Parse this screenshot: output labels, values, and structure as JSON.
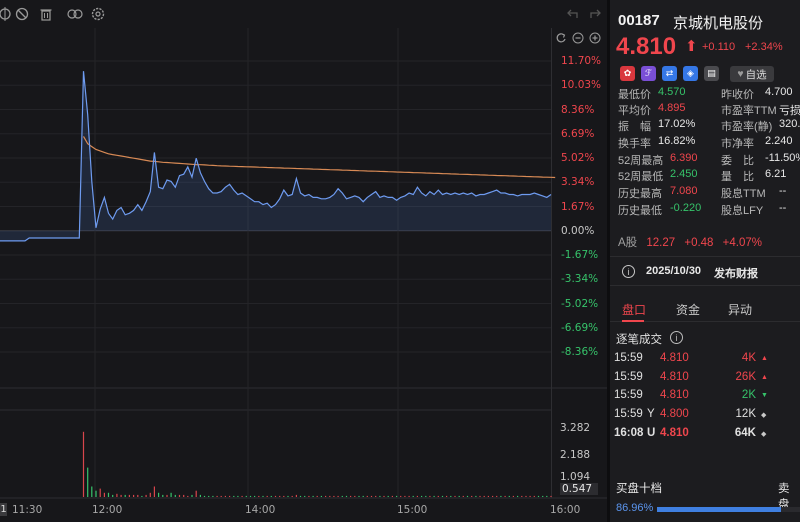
{
  "toolbar": {
    "icons": [
      "crosshair-icon",
      "no-entry-icon",
      "trash-icon",
      "link-icon",
      "settings-icon",
      "undo-icon",
      "redo-icon"
    ]
  },
  "chart": {
    "pct_labels": [
      {
        "text": "11.70%",
        "color": "#f0464d"
      },
      {
        "text": "10.03%",
        "color": "#f0464d"
      },
      {
        "text": "8.36%",
        "color": "#f0464d"
      },
      {
        "text": "6.69%",
        "color": "#f0464d"
      },
      {
        "text": "5.02%",
        "color": "#f0464d"
      },
      {
        "text": "3.34%",
        "color": "#f0464d"
      },
      {
        "text": "1.67%",
        "color": "#f0464d"
      },
      {
        "text": "0.00%",
        "color": "#c8c8c8"
      },
      {
        "text": "-1.67%",
        "color": "#36c36a"
      },
      {
        "text": "-3.34%",
        "color": "#36c36a"
      },
      {
        "text": "-5.02%",
        "color": "#36c36a"
      },
      {
        "text": "-6.69%",
        "color": "#36c36a"
      },
      {
        "text": "-8.36%",
        "color": "#36c36a"
      }
    ],
    "vol_labels": [
      "3.282",
      "2.188",
      "1.094",
      "0.547"
    ],
    "time_labels": [
      "11:30",
      "12:00",
      "14:00",
      "15:00",
      "16:00"
    ],
    "left_marker": "1"
  },
  "chart_data": {
    "type": "line",
    "title": "",
    "ylabel": "",
    "ylim_pct": [
      -8.36,
      11.7
    ],
    "prev_close": 4.7,
    "time_ticks": [
      "11:30",
      "12:00",
      "14:00",
      "15:00",
      "16:00"
    ],
    "series": [
      {
        "name": "",
        "color": "#6e9bf0",
        "values_pct": [
          -0.7,
          -0.7,
          -0.7,
          -0.7,
          -0.7,
          -0.7,
          -0.7,
          -0.5,
          -0.5,
          -0.5,
          -0.5,
          -0.5,
          -0.5,
          -0.5,
          -0.5,
          -0.5,
          -0.5,
          -0.5,
          -0.5,
          -0.5,
          11.0,
          8.0,
          3.4,
          0.2,
          1.5,
          2.3,
          1.2,
          0.8,
          1.4,
          1.6,
          1.1,
          1.2,
          1.4,
          1.8,
          1.4,
          2.0,
          2.7,
          5.4,
          3.0,
          2.9,
          3.5,
          3.4,
          3.0,
          3.8,
          3.9,
          4.4,
          3.7,
          5.0,
          4.0,
          3.4,
          2.9,
          2.6,
          2.6,
          2.7,
          3.0,
          3.2,
          2.8,
          2.5,
          2.6,
          2.4,
          2.2,
          2.0,
          2.0,
          1.8,
          1.9,
          1.6,
          1.8,
          2.2,
          2.8,
          2.4,
          2.5,
          3.6,
          2.6,
          2.4,
          2.5,
          2.3,
          2.3,
          2.2,
          2.2,
          2.3,
          2.5,
          2.9,
          2.6,
          2.2,
          2.3,
          2.4,
          2.3,
          2.0,
          2.3,
          2.5,
          2.7,
          2.3,
          2.4,
          2.3,
          2.3,
          2.1,
          2.3,
          2.4,
          2.6,
          2.5,
          3.0,
          2.6,
          2.4,
          2.7,
          2.5,
          2.8,
          2.5,
          2.6,
          2.5,
          2.6,
          2.5,
          2.6,
          2.5,
          2.6,
          2.4,
          2.5,
          2.5,
          2.6,
          2.7,
          2.8,
          2.6,
          2.6,
          2.5,
          2.5,
          2.4,
          2.5,
          2.5,
          2.5,
          2.6,
          2.5,
          2.4,
          2.3,
          2.5
        ]
      },
      {
        "name": "",
        "color": "#d88a55",
        "values_pct": [
          null,
          null,
          null,
          null,
          null,
          null,
          null,
          null,
          null,
          null,
          null,
          null,
          null,
          null,
          null,
          null,
          null,
          null,
          null,
          null,
          6.5,
          6.0,
          5.8,
          5.6,
          5.5,
          5.4,
          5.3,
          5.25,
          5.2,
          5.15,
          5.1,
          5.05,
          5.0,
          4.95,
          4.9,
          4.85,
          4.8,
          4.78,
          4.75,
          4.72,
          4.7,
          4.68,
          4.66,
          4.64,
          4.62,
          4.6,
          4.58,
          4.56,
          4.55,
          4.54,
          4.52,
          4.5,
          4.48,
          4.47,
          4.46,
          4.45,
          4.44,
          4.43,
          4.42,
          4.41,
          4.4,
          4.39,
          4.38,
          4.37,
          4.36,
          4.35,
          4.34,
          4.33,
          4.32,
          4.31,
          4.3,
          4.29,
          4.28,
          4.27,
          4.26,
          4.25,
          4.24,
          4.23,
          4.22,
          4.21,
          4.2,
          4.19,
          4.18,
          4.17,
          4.16,
          4.15,
          4.14,
          4.13,
          4.12,
          4.11,
          4.1,
          4.09,
          4.08,
          4.07,
          4.06,
          4.05,
          4.04,
          4.03,
          4.02,
          4.01,
          4.0,
          3.99,
          3.98,
          3.97,
          3.96,
          3.95,
          3.94,
          3.93,
          3.92,
          3.91,
          3.9,
          3.89,
          3.88,
          3.87,
          3.86,
          3.85,
          3.84,
          3.83,
          3.82,
          3.81,
          3.8,
          3.79,
          3.78,
          3.77,
          3.76,
          3.75,
          3.74,
          3.73,
          3.72,
          3.71,
          3.7,
          3.69,
          3.68,
          3.67
        ]
      }
    ],
    "volume": [
      0,
      0,
      0,
      0,
      0,
      0,
      0,
      0,
      0,
      0,
      0,
      0,
      0,
      0,
      0,
      0,
      0,
      0,
      0,
      0,
      3.1,
      1.4,
      0.5,
      0.3,
      0.4,
      0.2,
      0.2,
      0.1,
      0.15,
      0.1,
      0.1,
      0.1,
      0.1,
      0.1,
      0.05,
      0.1,
      0.2,
      0.5,
      0.2,
      0.1,
      0.1,
      0.2,
      0.1,
      0.1,
      0.1,
      0.05,
      0.1,
      0.3,
      0.1,
      0.05,
      0.05,
      0.05,
      0.05,
      0.05,
      0.05,
      0.05,
      0.05,
      0.05,
      0.05,
      0.05,
      0.05,
      0.05,
      0.05,
      0.05,
      0.05,
      0.05,
      0.05,
      0.05,
      0.05,
      0.05,
      0.05,
      0.1,
      0.05,
      0.05,
      0.05,
      0.05,
      0.05,
      0.05,
      0.05,
      0.05,
      0.05,
      0.05,
      0.05,
      0.05,
      0.05,
      0.05,
      0.05,
      0.05,
      0.05,
      0.05,
      0.05,
      0.05,
      0.05,
      0.05,
      0.05,
      0.05,
      0.05,
      0.05,
      0.05,
      0.05,
      0.05,
      0.05,
      0.05,
      0.05,
      0.05,
      0.05,
      0.05,
      0.05,
      0.05,
      0.05,
      0.05,
      0.05,
      0.05,
      0.05,
      0.05,
      0.05,
      0.05,
      0.05,
      0.05,
      0.05,
      0.05,
      0.05,
      0.05,
      0.05,
      0.05,
      0.05,
      0.05,
      0.05,
      0.05,
      0.05,
      0.05,
      0.05,
      0.05
    ],
    "vol_ylim": [
      0,
      3.282
    ]
  },
  "quote": {
    "code": "00187",
    "name": "京城机电股份",
    "price": "4.810",
    "arrow": "⬆",
    "change": "+0.110",
    "change_pct": "+2.34%",
    "watch_label": "自选",
    "left_col": [
      {
        "label": "最低价",
        "value": "4.570",
        "color": "green"
      },
      {
        "label": "平均价",
        "value": "4.895",
        "color": "red"
      },
      {
        "label": "振　幅",
        "value": "17.02%",
        "color": "white"
      },
      {
        "label": "换手率",
        "value": "16.82%",
        "color": "white"
      },
      {
        "label": "52周最高",
        "value": "6.390",
        "color": "red"
      },
      {
        "label": "52周最低",
        "value": "2.450",
        "color": "green"
      },
      {
        "label": "历史最高",
        "value": "7.080",
        "color": "red"
      },
      {
        "label": "历史最低",
        "value": "-0.220",
        "color": "green"
      }
    ],
    "right_col": [
      {
        "label": "昨收价",
        "value": "4.700",
        "color": "white"
      },
      {
        "label": "市盈率TTM",
        "value": "亏损",
        "color": "white"
      },
      {
        "label": "市盈率(静)",
        "value": "320.",
        "color": "white"
      },
      {
        "label": "市净率",
        "value": "2.240",
        "color": "white"
      },
      {
        "label": "委　比",
        "value": "-11.50%",
        "color": "white"
      },
      {
        "label": "量　比",
        "value": "6.21",
        "color": "white"
      },
      {
        "label": "股息TTM",
        "value": "--",
        "color": "white"
      },
      {
        "label": "股息LFY",
        "value": "--",
        "color": "white"
      }
    ],
    "a_share": {
      "label": "A股",
      "price": "12.27",
      "change": "+0.48",
      "pct": "+4.07%"
    },
    "notice": {
      "date": "2025/10/30",
      "text": "发布财报"
    },
    "tabs": [
      "盘口",
      "资金",
      "异动"
    ],
    "ticks_title": "逐笔成交",
    "ticks": [
      {
        "time": "15:59",
        "flag": "",
        "price": "4.810",
        "vol": "4K",
        "dir": "up"
      },
      {
        "time": "15:59",
        "flag": "",
        "price": "4.810",
        "vol": "26K",
        "dir": "up"
      },
      {
        "time": "15:59",
        "flag": "",
        "price": "4.810",
        "vol": "2K",
        "dir": "down"
      },
      {
        "time": "15:59",
        "flag": "Y",
        "price": "4.800",
        "vol": "12K",
        "dir": "neutral"
      },
      {
        "time": "16:08",
        "flag": "U",
        "price": "4.810",
        "vol": "64K",
        "dir": "neutral"
      }
    ],
    "book_title": "买盘十档",
    "book_sell": "卖盘",
    "buy_ratio": "86.96%",
    "buy_ratio_value": 0.8696
  }
}
